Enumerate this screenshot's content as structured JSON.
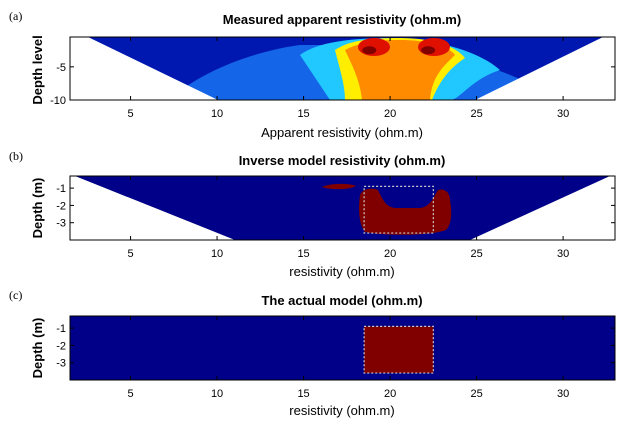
{
  "chart_data": [
    {
      "type": "heatmap",
      "panel_label": "(a)",
      "title": "Measured apparent resistivity (ohm.m)",
      "xlabel": "Apparent resistivity (ohm.m)",
      "ylabel": "Depth level",
      "xlim": [
        1.5,
        33
      ],
      "ylim": [
        -10,
        -0.5
      ],
      "xticks": [
        5,
        10,
        15,
        20,
        25,
        30
      ],
      "xtick_labels": [
        "5",
        "10",
        "15",
        "20",
        "25",
        "30"
      ],
      "yticks": [
        -5,
        -10
      ],
      "ytick_labels": [
        "-5",
        "-10"
      ],
      "background_value": "low",
      "high_zone": {
        "x_center": 20.5,
        "description_levels": [
          "low",
          "medium",
          "high"
        ]
      },
      "anomalies": [
        {
          "x": 18.8,
          "y": -2.5,
          "level": "max"
        },
        {
          "x": 22.2,
          "y": -2.5,
          "level": "max"
        }
      ],
      "colors": {
        "low": "#0018b0",
        "cyan": "#20c8ff",
        "yellow": "#ffee00",
        "orange": "#ff8c00",
        "red": "#e01000",
        "max": "#800000",
        "mask": "#ffffff"
      }
    },
    {
      "type": "heatmap",
      "panel_label": "(b)",
      "title": "Inverse model resistivity (ohm.m)",
      "xlabel": "resistivity (ohm.m)",
      "ylabel": "Depth (m)",
      "xlim": [
        1.5,
        33
      ],
      "ylim": [
        -4,
        -0.3
      ],
      "xticks": [
        5,
        10,
        15,
        20,
        25,
        30
      ],
      "xtick_labels": [
        "5",
        "10",
        "15",
        "20",
        "25",
        "30"
      ],
      "yticks": [
        -1,
        -2,
        -3
      ],
      "ytick_labels": [
        "-1",
        "-2",
        "-3"
      ],
      "actual_block": {
        "x": [
          18.5,
          22.5
        ],
        "y": [
          -3.6,
          -0.9
        ]
      },
      "colors": {
        "background": "#000088",
        "anomaly": "#800000",
        "mask": "#ffffff",
        "outline": "#cccccc"
      }
    },
    {
      "type": "heatmap",
      "panel_label": "(c)",
      "title": "The actual model (ohm.m)",
      "xlabel": "resistivity (ohm.m)",
      "ylabel": "Depth (m)",
      "xlim": [
        1.5,
        33
      ],
      "ylim": [
        -4,
        -0.3
      ],
      "xticks": [
        5,
        10,
        15,
        20,
        25,
        30
      ],
      "xtick_labels": [
        "5",
        "10",
        "15",
        "20",
        "25",
        "30"
      ],
      "yticks": [
        -1,
        -2,
        -3
      ],
      "ytick_labels": [
        "-1",
        "-2",
        "-3"
      ],
      "actual_block": {
        "x": [
          18.5,
          22.5
        ],
        "y": [
          -3.6,
          -0.9
        ]
      },
      "colors": {
        "background": "#000088",
        "anomaly": "#800000",
        "outline": "#cccccc"
      }
    }
  ]
}
